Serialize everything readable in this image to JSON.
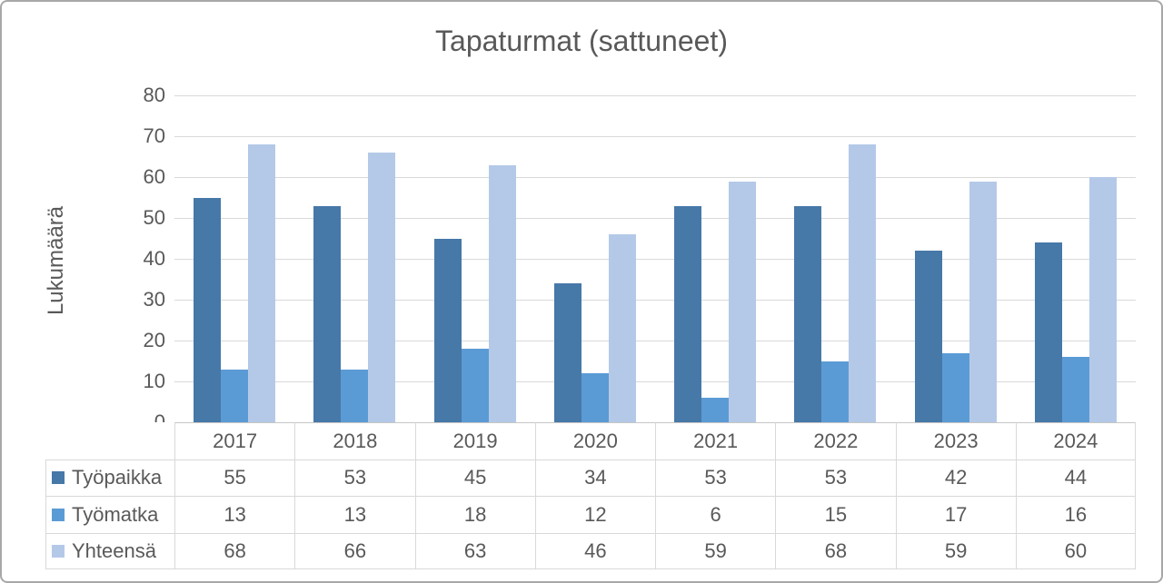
{
  "chart_data": {
    "type": "bar",
    "title": "Tapaturmat (sattuneet)",
    "xlabel": "",
    "ylabel": "Lukumäärä",
    "categories": [
      "2017",
      "2018",
      "2019",
      "2020",
      "2021",
      "2022",
      "2023",
      "2024"
    ],
    "series": [
      {
        "name": "Työpaikka",
        "color": "#4678A8",
        "values": [
          55,
          53,
          45,
          34,
          53,
          53,
          42,
          44
        ]
      },
      {
        "name": "Työmatka",
        "color": "#5B9BD5",
        "values": [
          13,
          13,
          18,
          12,
          6,
          15,
          17,
          16
        ]
      },
      {
        "name": "Yhteensä",
        "color": "#B4C9E8",
        "values": [
          68,
          66,
          63,
          46,
          59,
          68,
          59,
          60
        ]
      }
    ],
    "ylim": [
      0,
      80
    ],
    "ytick_step": 10,
    "yticks": [
      "0",
      "10",
      "20",
      "30",
      "40",
      "50",
      "60",
      "70",
      "80"
    ],
    "grid": true,
    "legend_position": "data-table-left",
    "data_table": true
  },
  "colors": {
    "text": "#595959",
    "gridline": "#D9D9D9",
    "axis_line": "#C6C6C6",
    "table_border": "#D9D9D9",
    "frame_border": "#A8A8A8",
    "background": "#FFFFFF"
  }
}
